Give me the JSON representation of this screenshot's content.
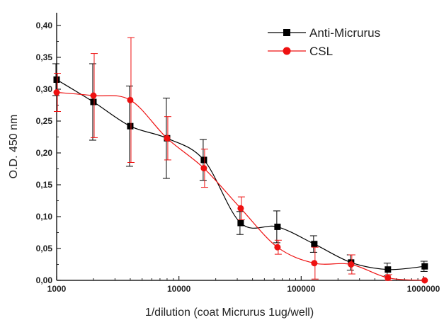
{
  "chart_data": {
    "type": "line",
    "xlabel": "1/dilution (coat Micrurus 1ug/well)",
    "ylabel": "O.D. 450 nm",
    "xscale": "log",
    "xlim": [
      1000,
      1000000
    ],
    "ylim": [
      0,
      0.42
    ],
    "xticks": [
      1000,
      10000,
      100000,
      1000000
    ],
    "xtick_labels": [
      "1000",
      "10000",
      "100000",
      "1000000"
    ],
    "yticks": [
      0,
      0.05,
      0.1,
      0.15,
      0.2,
      0.25,
      0.3,
      0.35,
      0.4
    ],
    "ytick_labels": [
      "0,00",
      "0,05",
      "0,10",
      "0,15",
      "0,20",
      "0,25",
      "0,30",
      "0,35",
      "0,40"
    ],
    "grid": false,
    "legend_position": "top-right",
    "series": [
      {
        "name": "Anti-Micrurus",
        "color": "#000000",
        "marker": "square",
        "x": [
          1000,
          2000,
          4000,
          8000,
          16000,
          32000,
          64000,
          128000,
          256000,
          512000,
          1024000
        ],
        "y": [
          0.315,
          0.28,
          0.242,
          0.223,
          0.189,
          0.09,
          0.084,
          0.057,
          0.028,
          0.017,
          0.022
        ],
        "err": [
          0.025,
          0.06,
          0.063,
          0.063,
          0.032,
          0.018,
          0.025,
          0.013,
          0.012,
          0.01,
          0.008
        ]
      },
      {
        "name": "CSL",
        "color": "#ee1111",
        "marker": "circle",
        "x": [
          1000,
          2000,
          4000,
          8000,
          16000,
          32000,
          64000,
          128000,
          256000,
          512000,
          1024000
        ],
        "y": [
          0.295,
          0.29,
          0.283,
          0.223,
          0.176,
          0.113,
          0.052,
          0.027,
          0.025,
          0.004,
          0.0
        ],
        "err": [
          0.03,
          0.066,
          0.098,
          0.034,
          0.03,
          0.018,
          0.011,
          0.025,
          0.015,
          0.005,
          0.0
        ]
      }
    ]
  }
}
